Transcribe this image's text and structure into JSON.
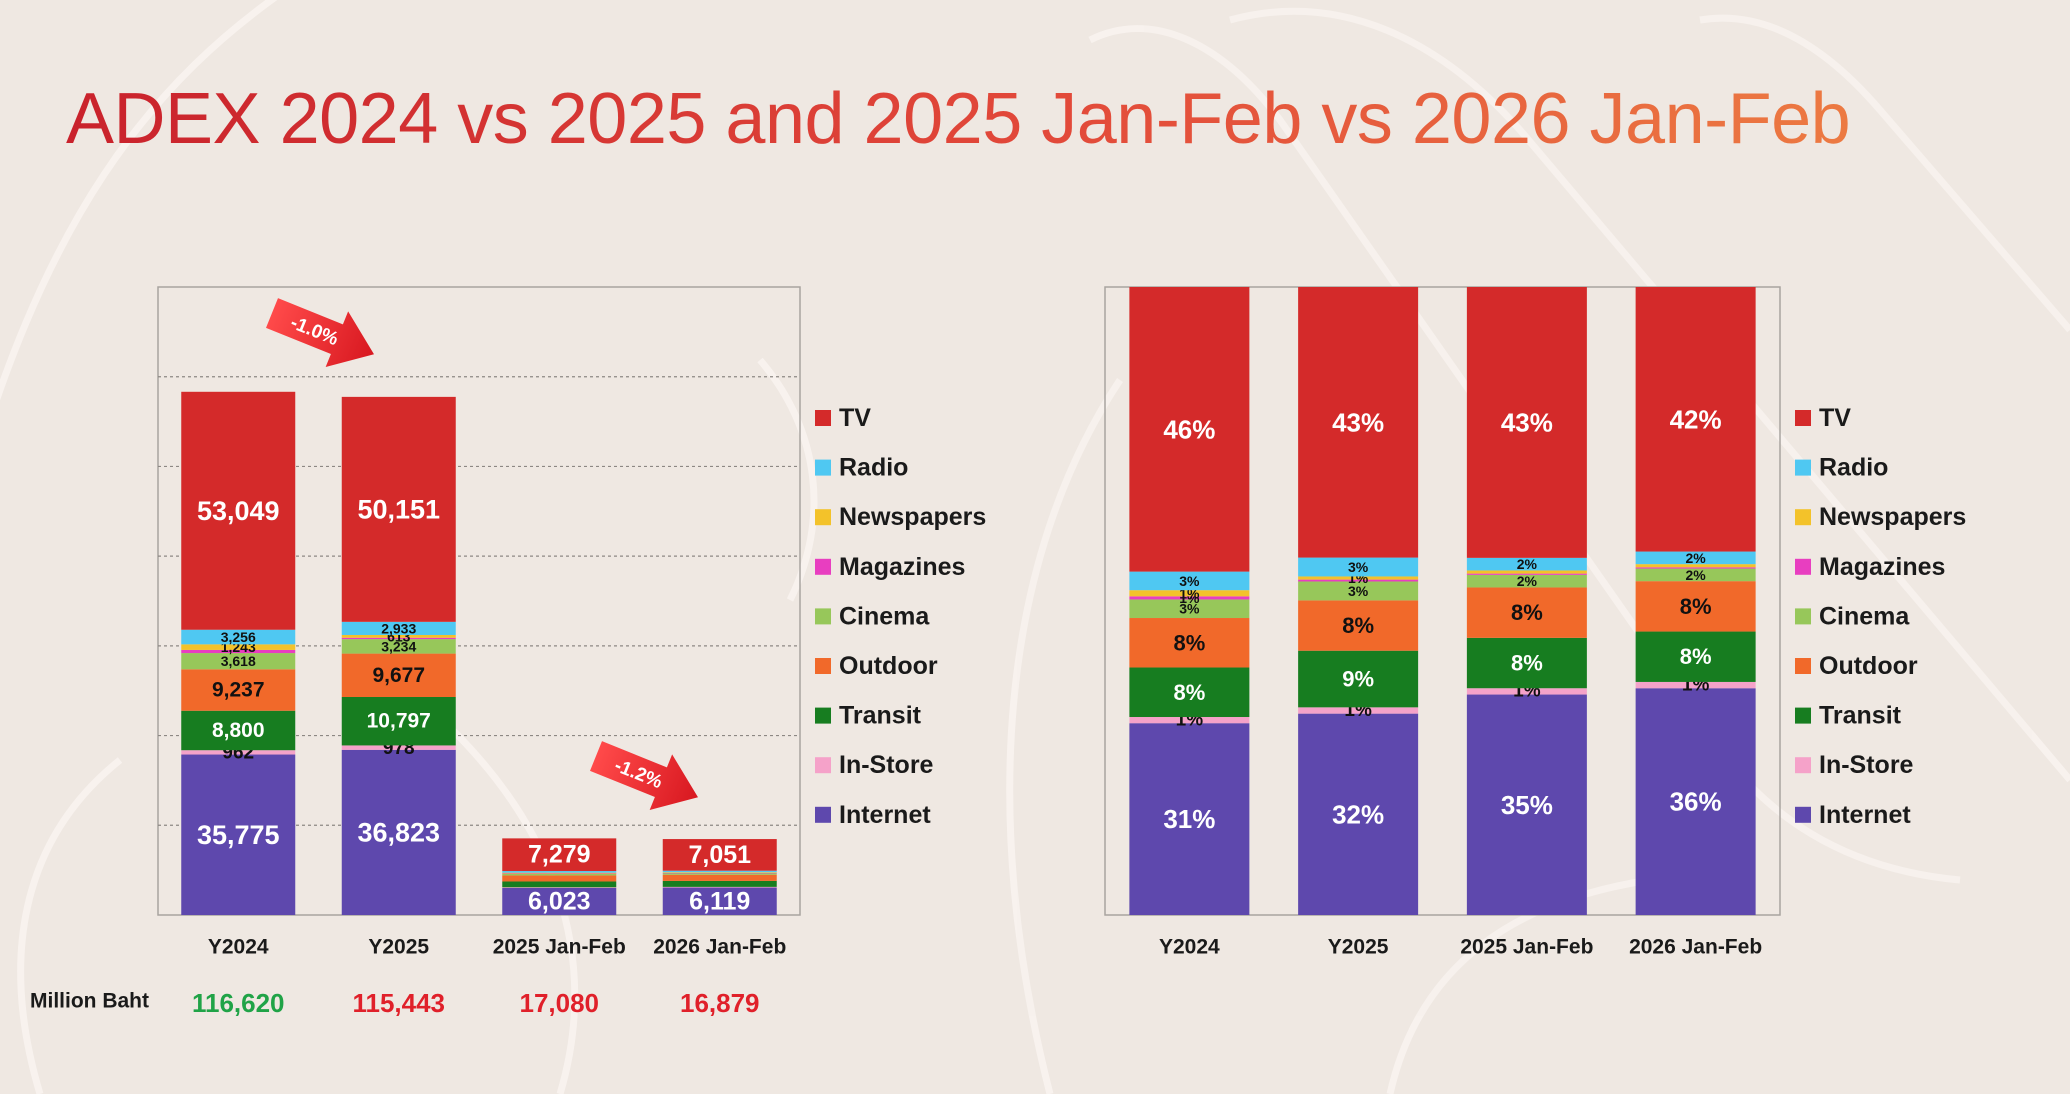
{
  "title": "ADEX 2024 vs 2025 and 2025 Jan-Feb vs 2026 Jan-Feb",
  "colors": {
    "TV": "#d42a2a",
    "Radio": "#4fc8f2",
    "Newspapers": "#f3c22a",
    "Magazines": "#e83ec0",
    "Cinema": "#97c75a",
    "Outdoor": "#f1692a",
    "Transit": "#177d20",
    "In-Store": "#f5a2c9",
    "Internet": "#5e48ad",
    "arrow": "#e8262a",
    "total_up": "#20a347",
    "total_down": "#e0202a"
  },
  "chart_data": [
    {
      "type": "bar",
      "stacked": true,
      "units": "Million Baht",
      "categories": [
        "Y2024",
        "Y2025",
        "2025 Jan-Feb",
        "2026 Jan-Feb"
      ],
      "legend": [
        "TV",
        "Radio",
        "Newspapers",
        "Magazines",
        "Cinema",
        "Outdoor",
        "Transit",
        "In-Store",
        "Internet"
      ],
      "legend_position": "right",
      "ylim": [
        0,
        140000
      ],
      "grid": "dotted horizontal",
      "series": [
        {
          "name": "Internet",
          "values": [
            35775,
            36823,
            6023,
            6119
          ],
          "labels": [
            "35,775",
            "36,823",
            "6,023",
            "6,119"
          ]
        },
        {
          "name": "In-Store",
          "values": [
            962,
            978,
            150,
            150
          ],
          "labels": [
            "962",
            "978",
            "",
            ""
          ]
        },
        {
          "name": "Transit",
          "values": [
            8800,
            10797,
            1300,
            1330
          ],
          "labels": [
            "8,800",
            "10,797",
            "",
            ""
          ]
        },
        {
          "name": "Outdoor",
          "values": [
            9237,
            9677,
            1350,
            1370
          ],
          "labels": [
            "9,237",
            "9,677",
            "",
            ""
          ]
        },
        {
          "name": "Cinema",
          "values": [
            3618,
            3234,
            380,
            370
          ],
          "labels": [
            "3,618",
            "3,234",
            "",
            ""
          ]
        },
        {
          "name": "Magazines",
          "values": [
            700,
            300,
            60,
            50
          ],
          "labels": [
            "",
            "",
            "",
            ""
          ]
        },
        {
          "name": "Newspapers",
          "values": [
            1243,
            613,
            170,
            150
          ],
          "labels": [
            "1,243",
            "613",
            "",
            ""
          ]
        },
        {
          "name": "Radio",
          "values": [
            3256,
            2933,
            370,
            340
          ],
          "labels": [
            "3,256",
            "2,933",
            "",
            ""
          ]
        },
        {
          "name": "TV",
          "values": [
            53049,
            50151,
            7279,
            7051
          ],
          "labels": [
            "53,049",
            "50,151",
            "7,279",
            "7,051"
          ]
        }
      ],
      "totals_label": "Million Baht",
      "totals": [
        "116,620",
        "115,443",
        "17,080",
        "16,879"
      ],
      "totals_direction": [
        "up",
        "down",
        "down",
        "down"
      ],
      "annotations": [
        {
          "text": "-1.0%",
          "between": [
            "Y2024",
            "Y2025"
          ]
        },
        {
          "text": "-1.2%",
          "between": [
            "2025 Jan-Feb",
            "2026 Jan-Feb"
          ]
        }
      ]
    },
    {
      "type": "bar",
      "stacked": true,
      "percent": true,
      "categories": [
        "Y2024",
        "Y2025",
        "2025 Jan-Feb",
        "2026 Jan-Feb"
      ],
      "legend": [
        "TV",
        "Radio",
        "Newspapers",
        "Magazines",
        "Cinema",
        "Outdoor",
        "Transit",
        "In-Store",
        "Internet"
      ],
      "legend_position": "right",
      "ylim": [
        0,
        100
      ],
      "series": [
        {
          "name": "Internet",
          "values": [
            31,
            32,
            35,
            36
          ],
          "labels": [
            "31%",
            "32%",
            "35%",
            "36%"
          ]
        },
        {
          "name": "In-Store",
          "values": [
            1,
            1,
            1,
            1
          ],
          "labels": [
            "1%",
            "1%",
            "1%",
            "1%"
          ]
        },
        {
          "name": "Transit",
          "values": [
            8,
            9,
            8,
            8
          ],
          "labels": [
            "8%",
            "9%",
            "8%",
            "8%"
          ]
        },
        {
          "name": "Outdoor",
          "values": [
            8,
            8,
            8,
            8
          ],
          "labels": [
            "8%",
            "8%",
            "8%",
            "8%"
          ]
        },
        {
          "name": "Cinema",
          "values": [
            3,
            3,
            2,
            2
          ],
          "labels": [
            "3%",
            "3%",
            "2%",
            "2%"
          ]
        },
        {
          "name": "Magazines",
          "values": [
            0.5,
            0.3,
            0.2,
            0.2
          ],
          "labels": [
            "1%",
            "",
            "",
            ""
          ]
        },
        {
          "name": "Newspapers",
          "values": [
            1,
            0.5,
            0.5,
            0.5
          ],
          "labels": [
            "1%",
            "1%",
            "",
            ""
          ]
        },
        {
          "name": "Radio",
          "values": [
            3,
            3,
            2,
            2
          ],
          "labels": [
            "3%",
            "3%",
            "2%",
            "2%"
          ]
        },
        {
          "name": "TV",
          "values": [
            46,
            43,
            43,
            42
          ],
          "labels": [
            "46%",
            "43%",
            "43%",
            "42%"
          ]
        }
      ]
    }
  ]
}
